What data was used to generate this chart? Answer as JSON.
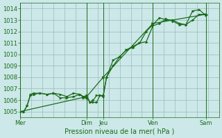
{
  "bg_color": "#cce8e8",
  "grid_color": "#99bbbb",
  "line_color": "#1a6b1a",
  "marker_color": "#1a6b1a",
  "xlabel": "Pression niveau de la mer( hPa )",
  "ylim": [
    1004.5,
    1014.5
  ],
  "yticks": [
    1005,
    1006,
    1007,
    1008,
    1009,
    1010,
    1011,
    1012,
    1013,
    1014
  ],
  "xlim": [
    0,
    180
  ],
  "day_labels": [
    "Mer",
    "Dim",
    "Jeu",
    "Ven",
    "Sam"
  ],
  "day_positions": [
    0,
    60,
    75,
    120,
    168
  ],
  "vline_positions": [
    0,
    60,
    75,
    120,
    168
  ],
  "series1_x": [
    0,
    3,
    6,
    9,
    12,
    18,
    24,
    30,
    36,
    42,
    48,
    54,
    57,
    60,
    63,
    66,
    69,
    72,
    75,
    78,
    84,
    90,
    96,
    102,
    108,
    114,
    120,
    126,
    132,
    138,
    144,
    150,
    156,
    162,
    168
  ],
  "series1_y": [
    1005.0,
    1005.0,
    1005.5,
    1006.5,
    1006.6,
    1006.6,
    1006.5,
    1006.6,
    1006.5,
    1006.3,
    1006.6,
    1006.5,
    1006.3,
    1006.4,
    1005.8,
    1006.0,
    1006.4,
    1006.4,
    1006.4,
    1008.0,
    1009.0,
    1009.8,
    1010.4,
    1010.7,
    1011.0,
    1011.1,
    1012.5,
    1012.7,
    1013.1,
    1012.9,
    1012.6,
    1012.6,
    1013.0,
    1013.5,
    1013.5
  ],
  "series2_x": [
    0,
    3,
    6,
    9,
    12,
    18,
    24,
    30,
    36,
    42,
    48,
    54,
    57,
    60,
    63,
    66,
    69,
    72,
    75,
    78,
    84,
    90,
    96,
    102,
    108,
    114,
    120,
    126,
    132,
    138,
    144,
    150,
    156,
    162,
    168
  ],
  "series2_y": [
    1005.0,
    1005.0,
    1005.5,
    1006.4,
    1006.5,
    1006.6,
    1006.5,
    1006.6,
    1006.2,
    1006.2,
    1006.3,
    1006.5,
    1006.2,
    1006.2,
    1005.8,
    1005.8,
    1005.8,
    1006.4,
    1006.3,
    1008.0,
    1009.5,
    1009.8,
    1010.4,
    1010.6,
    1011.0,
    1012.0,
    1012.6,
    1013.2,
    1013.0,
    1013.0,
    1012.7,
    1012.6,
    1013.8,
    1013.9,
    1013.4
  ],
  "series3_x": [
    0,
    60,
    75,
    120,
    168
  ],
  "series3_y": [
    1005.0,
    1006.3,
    1008.0,
    1012.7,
    1013.5
  ],
  "grid_minor_x_count": 12,
  "tick_fontsize": 6.0,
  "xlabel_fontsize": 7.0
}
